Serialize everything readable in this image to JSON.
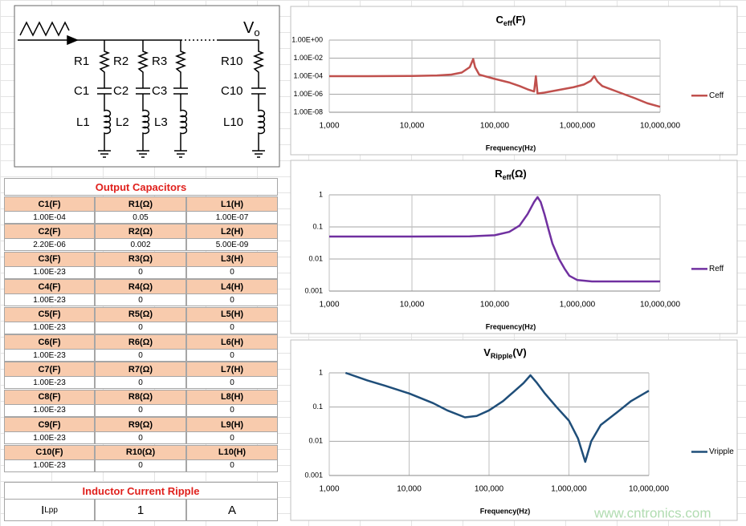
{
  "circuit": {
    "output": "V",
    "output_sub": "o",
    "branches": [
      {
        "r": "R1",
        "c": "C1",
        "l": "L1"
      },
      {
        "r": "R2",
        "c": "C2",
        "l": "L2"
      },
      {
        "r": "R3",
        "c": "C3",
        "l": "L3"
      },
      {
        "r": "R10",
        "c": "C10",
        "l": "L10"
      }
    ]
  },
  "table": {
    "title": "Output Capacitors",
    "groups": [
      {
        "header": [
          "C1(F)",
          "R1(Ω)",
          "L1(H)"
        ],
        "values": [
          "1.00E-04",
          "0.05",
          "1.00E-07"
        ]
      },
      {
        "header": [
          "C2(F)",
          "R2(Ω)",
          "L2(H)"
        ],
        "values": [
          "2.20E-06",
          "0.002",
          "5.00E-09"
        ]
      },
      {
        "header": [
          "C3(F)",
          "R3(Ω)",
          "L3(H)"
        ],
        "values": [
          "1.00E-23",
          "0",
          "0"
        ]
      },
      {
        "header": [
          "C4(F)",
          "R4(Ω)",
          "L4(H)"
        ],
        "values": [
          "1.00E-23",
          "0",
          "0"
        ]
      },
      {
        "header": [
          "C5(F)",
          "R5(Ω)",
          "L5(H)"
        ],
        "values": [
          "1.00E-23",
          "0",
          "0"
        ]
      },
      {
        "header": [
          "C6(F)",
          "R6(Ω)",
          "L6(H)"
        ],
        "values": [
          "1.00E-23",
          "0",
          "0"
        ]
      },
      {
        "header": [
          "C7(F)",
          "R7(Ω)",
          "L7(H)"
        ],
        "values": [
          "1.00E-23",
          "0",
          "0"
        ]
      },
      {
        "header": [
          "C8(F)",
          "R8(Ω)",
          "L8(H)"
        ],
        "values": [
          "1.00E-23",
          "0",
          "0"
        ]
      },
      {
        "header": [
          "C9(F)",
          "R9(Ω)",
          "L9(H)"
        ],
        "values": [
          "1.00E-23",
          "0",
          "0"
        ]
      },
      {
        "header": [
          "C10(F)",
          "R10(Ω)",
          "L10(H)"
        ],
        "values": [
          "1.00E-23",
          "0",
          "0"
        ]
      }
    ],
    "ripple_title": "Inductor Current Ripple",
    "ripple": {
      "label": "I",
      "label_sub": "Lpp",
      "value": "1",
      "unit": "A"
    }
  },
  "chart_data": [
    {
      "type": "line",
      "title": "C",
      "title_sub": "eff",
      "title_suffix": "(F)",
      "x_label": "Frequency(Hz)",
      "x_log": true,
      "y_log": true,
      "grid": true,
      "legend": "right",
      "xlim": [
        1000,
        10000000
      ],
      "xticks": [
        {
          "value": 1000,
          "label": "1,000"
        },
        {
          "value": 10000,
          "label": "10,000"
        },
        {
          "value": 100000,
          "label": "100,000"
        },
        {
          "value": 1000000,
          "label": "1,000,000"
        },
        {
          "value": 10000000,
          "label": "10,000,000"
        }
      ],
      "ylim": [
        1e-08,
        1
      ],
      "yticks": [
        {
          "value": 1e-08,
          "label": "1.00E-08"
        },
        {
          "value": 1e-06,
          "label": "1.00E-06"
        },
        {
          "value": 0.0001,
          "label": "1.00E-04"
        },
        {
          "value": 0.01,
          "label": "1.00E-02"
        },
        {
          "value": 1,
          "label": "1.00E+00"
        }
      ],
      "x": [
        1000,
        3000,
        10000,
        20000,
        30000,
        40000,
        50000,
        55000,
        58000,
        65000,
        100000,
        150000,
        200000,
        250000,
        300000,
        315000,
        330000,
        400000,
        600000,
        900000,
        1200000,
        1450000,
        1600000,
        1750000,
        2000000,
        3000000,
        5000000,
        7000000,
        10000000
      ],
      "series": [
        {
          "name": "Ceff",
          "color": "#c0504d",
          "values": [
            0.0001,
            0.0001,
            0.000105,
            0.00012,
            0.00015,
            0.00025,
            0.001,
            0.008,
            0.001,
            0.00015,
            5e-05,
            2e-05,
            8e-06,
            3.5e-06,
            2e-06,
            0.0001,
            1.2e-06,
            1.5e-06,
            3e-06,
            6e-06,
            1.2e-05,
            3e-05,
            0.0001,
            2.5e-05,
            8e-06,
            2e-06,
            3.5e-07,
            1e-07,
            4e-08
          ]
        }
      ]
    },
    {
      "type": "line",
      "title": "R",
      "title_sub": "eff",
      "title_suffix": "(Ω)",
      "x_label": "Frequency(Hz)",
      "x_log": true,
      "y_log": true,
      "grid": true,
      "legend": "right",
      "xlim": [
        1000,
        10000000
      ],
      "xticks": [
        {
          "value": 1000,
          "label": "1,000"
        },
        {
          "value": 10000,
          "label": "10,000"
        },
        {
          "value": 100000,
          "label": "100,000"
        },
        {
          "value": 1000000,
          "label": "1,000,000"
        },
        {
          "value": 10000000,
          "label": "10,000,000"
        }
      ],
      "ylim": [
        0.001,
        1
      ],
      "yticks": [
        0.001,
        0.01,
        0.1,
        1
      ],
      "x": [
        1000,
        10000,
        50000,
        100000,
        150000,
        200000,
        250000,
        300000,
        330000,
        360000,
        400000,
        450000,
        500000,
        600000,
        700000,
        800000,
        1000000,
        1500000,
        10000000
      ],
      "series": [
        {
          "name": "Reff",
          "color": "#7030a0",
          "values": [
            0.05,
            0.05,
            0.051,
            0.055,
            0.07,
            0.11,
            0.25,
            0.6,
            0.85,
            0.6,
            0.25,
            0.08,
            0.03,
            0.01,
            0.005,
            0.003,
            0.0022,
            0.002,
            0.002
          ]
        }
      ]
    },
    {
      "type": "line",
      "title": "V",
      "title_sub": "Ripple",
      "title_suffix": "(V)",
      "x_label": "Frequency(Hz)",
      "x_log": true,
      "y_log": true,
      "grid": true,
      "legend": "right",
      "xlim": [
        1000,
        10000000
      ],
      "xticks": [
        {
          "value": 1000,
          "label": "1,000"
        },
        {
          "value": 10000,
          "label": "10,000"
        },
        {
          "value": 100000,
          "label": "100,000"
        },
        {
          "value": 1000000,
          "label": "1,000,000"
        },
        {
          "value": 10000000,
          "label": "10,000,000"
        }
      ],
      "ylim": [
        0.001,
        1
      ],
      "yticks": [
        0.001,
        0.01,
        0.1,
        1
      ],
      "x": [
        1600,
        3000,
        5000,
        10000,
        20000,
        30000,
        50000,
        70000,
        100000,
        150000,
        200000,
        270000,
        330000,
        400000,
        500000,
        700000,
        1000000,
        1300000,
        1600000,
        1900000,
        2500000,
        4000000,
        6000000,
        10000000
      ],
      "series": [
        {
          "name": "Vripple",
          "color": "#1f4e79",
          "values": [
            1,
            0.6,
            0.42,
            0.25,
            0.13,
            0.08,
            0.05,
            0.055,
            0.08,
            0.15,
            0.27,
            0.5,
            0.85,
            0.5,
            0.25,
            0.1,
            0.04,
            0.012,
            0.0025,
            0.01,
            0.03,
            0.07,
            0.15,
            0.3
          ]
        }
      ]
    }
  ],
  "watermark": "www.cntronics.com"
}
